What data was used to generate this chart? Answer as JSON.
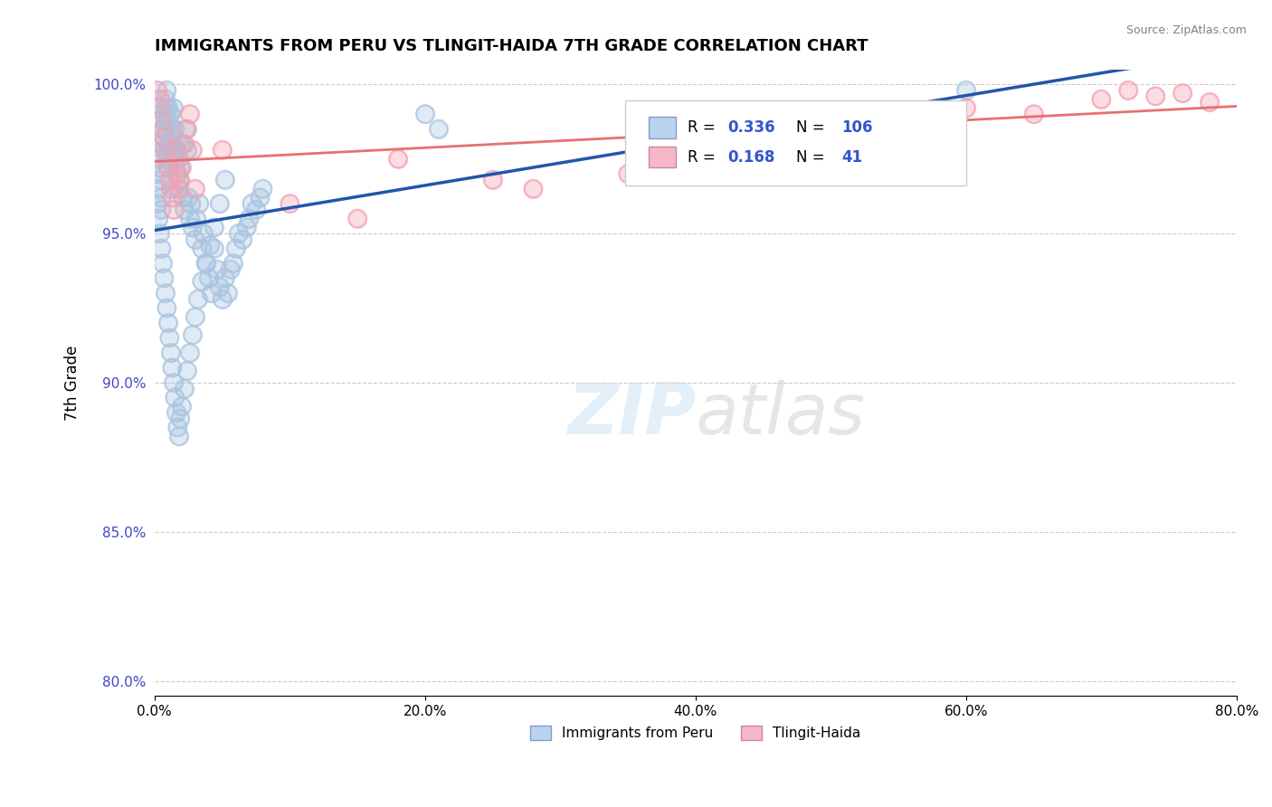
{
  "title": "IMMIGRANTS FROM PERU VS TLINGIT-HAIDA 7TH GRADE CORRELATION CHART",
  "source_text": "Source: ZipAtlas.com",
  "ylabel": "7th Grade",
  "xlim": [
    0.0,
    0.8
  ],
  "ylim": [
    0.795,
    1.005
  ],
  "xtick_labels": [
    "0.0%",
    "20.0%",
    "40.0%",
    "60.0%",
    "80.0%"
  ],
  "xtick_vals": [
    0.0,
    0.2,
    0.4,
    0.6,
    0.8
  ],
  "ytick_labels": [
    "80.0%",
    "85.0%",
    "90.0%",
    "95.0%",
    "100.0%"
  ],
  "ytick_vals": [
    0.8,
    0.85,
    0.9,
    0.95,
    1.0
  ],
  "blue_R": 0.336,
  "blue_N": 106,
  "pink_R": 0.168,
  "pink_N": 41,
  "blue_color": "#a8c4e0",
  "pink_color": "#f4a0b0",
  "blue_line_color": "#2255aa",
  "pink_line_color": "#e87070",
  "legend_label_blue": "Immigrants from Peru",
  "legend_label_pink": "Tlingit-Haida",
  "blue_scatter_x": [
    0.002,
    0.003,
    0.003,
    0.004,
    0.004,
    0.005,
    0.005,
    0.005,
    0.006,
    0.006,
    0.007,
    0.007,
    0.008,
    0.008,
    0.008,
    0.009,
    0.009,
    0.01,
    0.01,
    0.01,
    0.011,
    0.011,
    0.012,
    0.012,
    0.013,
    0.013,
    0.014,
    0.014,
    0.015,
    0.015,
    0.016,
    0.016,
    0.017,
    0.018,
    0.018,
    0.019,
    0.02,
    0.021,
    0.022,
    0.023,
    0.024,
    0.025,
    0.026,
    0.027,
    0.028,
    0.03,
    0.031,
    0.033,
    0.035,
    0.036,
    0.038,
    0.04,
    0.042,
    0.044,
    0.046,
    0.048,
    0.05,
    0.052,
    0.054,
    0.056,
    0.058,
    0.06,
    0.062,
    0.065,
    0.068,
    0.07,
    0.072,
    0.075,
    0.078,
    0.08,
    0.002,
    0.003,
    0.004,
    0.005,
    0.006,
    0.007,
    0.008,
    0.009,
    0.01,
    0.011,
    0.012,
    0.013,
    0.014,
    0.015,
    0.016,
    0.017,
    0.018,
    0.019,
    0.02,
    0.022,
    0.024,
    0.026,
    0.028,
    0.03,
    0.032,
    0.035,
    0.038,
    0.041,
    0.044,
    0.048,
    0.052,
    0.2,
    0.21,
    0.38,
    0.4,
    0.6
  ],
  "blue_scatter_y": [
    0.97,
    0.965,
    0.975,
    0.968,
    0.972,
    0.98,
    0.962,
    0.958,
    0.985,
    0.978,
    0.99,
    0.982,
    0.995,
    0.988,
    0.992,
    0.998,
    0.985,
    0.992,
    0.978,
    0.988,
    0.98,
    0.975,
    0.982,
    0.99,
    0.985,
    0.978,
    0.992,
    0.98,
    0.985,
    0.975,
    0.978,
    0.97,
    0.965,
    0.975,
    0.968,
    0.972,
    0.98,
    0.962,
    0.958,
    0.985,
    0.978,
    0.962,
    0.955,
    0.96,
    0.952,
    0.948,
    0.955,
    0.96,
    0.945,
    0.95,
    0.94,
    0.935,
    0.93,
    0.945,
    0.938,
    0.932,
    0.928,
    0.935,
    0.93,
    0.938,
    0.94,
    0.945,
    0.95,
    0.948,
    0.952,
    0.955,
    0.96,
    0.958,
    0.962,
    0.965,
    0.96,
    0.955,
    0.95,
    0.945,
    0.94,
    0.935,
    0.93,
    0.925,
    0.92,
    0.915,
    0.91,
    0.905,
    0.9,
    0.895,
    0.89,
    0.885,
    0.882,
    0.888,
    0.892,
    0.898,
    0.904,
    0.91,
    0.916,
    0.922,
    0.928,
    0.934,
    0.94,
    0.946,
    0.952,
    0.96,
    0.968,
    0.99,
    0.985,
    0.985,
    0.99,
    0.998
  ],
  "pink_scatter_x": [
    0.002,
    0.003,
    0.004,
    0.005,
    0.006,
    0.007,
    0.008,
    0.009,
    0.01,
    0.011,
    0.012,
    0.013,
    0.014,
    0.015,
    0.016,
    0.017,
    0.018,
    0.019,
    0.02,
    0.022,
    0.024,
    0.026,
    0.028,
    0.03,
    0.05,
    0.1,
    0.15,
    0.18,
    0.25,
    0.28,
    0.35,
    0.42,
    0.48,
    0.55,
    0.6,
    0.65,
    0.7,
    0.72,
    0.74,
    0.76,
    0.78
  ],
  "pink_scatter_y": [
    0.998,
    0.992,
    0.995,
    0.988,
    0.985,
    0.982,
    0.978,
    0.975,
    0.972,
    0.968,
    0.965,
    0.962,
    0.958,
    0.978,
    0.975,
    0.97,
    0.965,
    0.968,
    0.972,
    0.98,
    0.985,
    0.99,
    0.978,
    0.965,
    0.978,
    0.96,
    0.955,
    0.975,
    0.968,
    0.965,
    0.97,
    0.975,
    0.988,
    0.985,
    0.992,
    0.99,
    0.995,
    0.998,
    0.996,
    0.997,
    0.994
  ]
}
